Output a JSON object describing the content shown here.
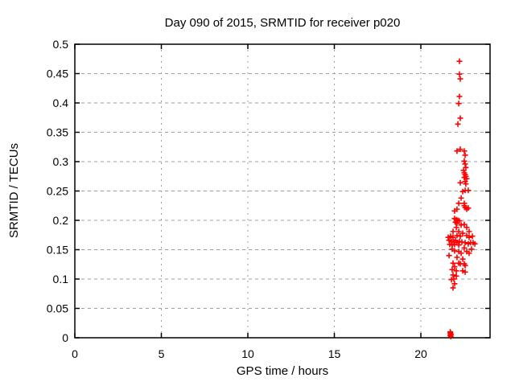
{
  "figure": {
    "background": "#ffffff",
    "border_color": "#000000",
    "grid_color": "#9e9e9e",
    "text_color": "#000000",
    "marker_color": "#ff0000"
  },
  "chart_data": {
    "type": "scatter",
    "title": "Day 090 of 2015, SRMTID for receiver p020",
    "xlabel": "GPS time / hours",
    "ylabel": "SRMTID / TECUs",
    "xlim": [
      0,
      24
    ],
    "ylim": [
      0,
      0.5
    ],
    "xticks": [
      0,
      5,
      10,
      15,
      20
    ],
    "xtick_labels": [
      "0",
      "5",
      "10",
      "15",
      "20"
    ],
    "yticks": [
      0,
      0.05,
      0.1,
      0.15,
      0.2,
      0.25,
      0.3,
      0.35,
      0.4,
      0.45,
      0.5
    ],
    "ytick_labels": [
      "0",
      "0.05",
      "0.1",
      "0.15",
      "0.2",
      "0.25",
      "0.3",
      "0.35",
      "0.4",
      "0.45",
      "0.5"
    ],
    "grid": true,
    "legend": "none",
    "series": [
      {
        "name": "SRMTID",
        "marker": "plus",
        "color": "#ff0000",
        "points": [
          [
            22.23,
            0.471
          ],
          [
            22.23,
            0.449
          ],
          [
            22.28,
            0.441
          ],
          [
            22.23,
            0.411
          ],
          [
            22.19,
            0.399
          ],
          [
            22.28,
            0.374
          ],
          [
            22.14,
            0.364
          ],
          [
            22.09,
            0.318
          ],
          [
            22.28,
            0.321
          ],
          [
            22.51,
            0.318
          ],
          [
            22.56,
            0.311
          ],
          [
            22.51,
            0.301
          ],
          [
            22.56,
            0.296
          ],
          [
            22.6,
            0.29
          ],
          [
            22.47,
            0.285
          ],
          [
            22.51,
            0.281
          ],
          [
            22.56,
            0.278
          ],
          [
            22.6,
            0.275
          ],
          [
            22.51,
            0.273
          ],
          [
            22.65,
            0.271
          ],
          [
            22.28,
            0.264
          ],
          [
            22.56,
            0.266
          ],
          [
            22.6,
            0.262
          ],
          [
            22.42,
            0.249
          ],
          [
            22.56,
            0.251
          ],
          [
            22.74,
            0.251
          ],
          [
            22.33,
            0.238
          ],
          [
            22.19,
            0.229
          ],
          [
            22.51,
            0.229
          ],
          [
            22.51,
            0.225
          ],
          [
            22.65,
            0.219
          ],
          [
            21.95,
            0.216
          ],
          [
            22.09,
            0.219
          ],
          [
            22.56,
            0.222
          ],
          [
            22.74,
            0.221
          ],
          [
            21.95,
            0.203
          ],
          [
            22.05,
            0.201
          ],
          [
            22.14,
            0.2
          ],
          [
            22.23,
            0.199
          ],
          [
            22.0,
            0.197
          ],
          [
            22.09,
            0.195
          ],
          [
            22.33,
            0.192
          ],
          [
            22.51,
            0.193
          ],
          [
            22.05,
            0.188
          ],
          [
            22.65,
            0.188
          ],
          [
            21.86,
            0.181
          ],
          [
            22.19,
            0.181
          ],
          [
            22.42,
            0.178
          ],
          [
            22.79,
            0.181
          ],
          [
            21.58,
            0.171
          ],
          [
            21.72,
            0.173
          ],
          [
            21.86,
            0.171
          ],
          [
            22.65,
            0.174
          ],
          [
            22.79,
            0.171
          ],
          [
            22.98,
            0.173
          ],
          [
            22.09,
            0.174
          ],
          [
            22.28,
            0.173
          ],
          [
            21.63,
            0.166
          ],
          [
            21.77,
            0.164
          ],
          [
            21.91,
            0.163
          ],
          [
            22.0,
            0.166
          ],
          [
            22.09,
            0.162
          ],
          [
            22.23,
            0.164
          ],
          [
            22.37,
            0.163
          ],
          [
            22.56,
            0.162
          ],
          [
            22.74,
            0.16
          ],
          [
            22.88,
            0.162
          ],
          [
            23.02,
            0.162
          ],
          [
            21.67,
            0.159
          ],
          [
            21.81,
            0.158
          ],
          [
            21.95,
            0.159
          ],
          [
            22.19,
            0.158
          ],
          [
            23.12,
            0.16
          ],
          [
            22.51,
            0.153
          ],
          [
            21.81,
            0.151
          ],
          [
            21.95,
            0.148
          ],
          [
            22.19,
            0.147
          ],
          [
            22.33,
            0.144
          ],
          [
            22.65,
            0.147
          ],
          [
            22.79,
            0.144
          ],
          [
            21.63,
            0.14
          ],
          [
            22.09,
            0.137
          ],
          [
            22.93,
            0.151
          ],
          [
            22.42,
            0.134
          ],
          [
            21.86,
            0.127
          ],
          [
            22.28,
            0.126
          ],
          [
            22.56,
            0.123
          ],
          [
            21.95,
            0.121
          ],
          [
            22.19,
            0.127
          ],
          [
            22.51,
            0.126
          ],
          [
            21.81,
            0.116
          ],
          [
            22.05,
            0.114
          ],
          [
            22.42,
            0.114
          ],
          [
            22.56,
            0.112
          ],
          [
            21.86,
            0.107
          ],
          [
            22.05,
            0.105
          ],
          [
            21.91,
            0.1
          ],
          [
            21.77,
            0.099
          ],
          [
            21.95,
            0.092
          ],
          [
            21.86,
            0.085
          ],
          [
            21.7,
            0.01
          ],
          [
            21.72,
            0.007
          ],
          [
            21.74,
            0.005
          ],
          [
            21.7,
            0.004
          ],
          [
            21.73,
            0.002
          ],
          [
            21.71,
            0.008
          ]
        ]
      }
    ]
  }
}
